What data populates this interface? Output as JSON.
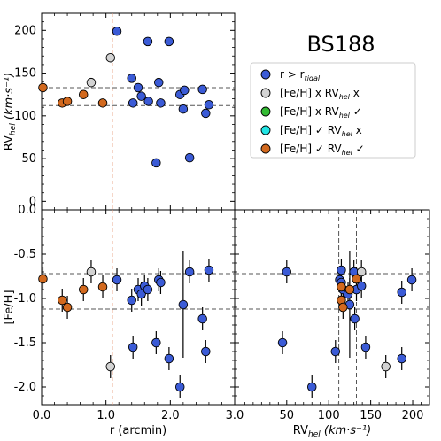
{
  "title": "BS188",
  "colors": {
    "blue": "#3b5bd6",
    "gray": "#d3d3d3",
    "green": "#33bb33",
    "cyan": "#22e5e5",
    "orange": "#d2691e",
    "rtidal_line": "#e8a080",
    "dashed": "#555555"
  },
  "legend": {
    "placement": "top-right",
    "entries": [
      {
        "key": "blue",
        "label": "r > r",
        "sub": "tidal"
      },
      {
        "key": "gray",
        "label": "[Fe/H]  x     RV",
        "sub": "hel",
        "tail": "  x"
      },
      {
        "key": "green",
        "label": "[Fe/H]  x     RV",
        "sub": "hel",
        "tail": "  ✓"
      },
      {
        "key": "cyan",
        "label": "[Fe/H]  ✓     RV",
        "sub": "hel",
        "tail": "  x"
      },
      {
        "key": "orange",
        "label": "[Fe/H]  ✓     RV",
        "sub": "hel",
        "tail": "  ✓"
      }
    ]
  },
  "axes": {
    "rv_label": "RV",
    "rv_sub": "hel",
    "rv_units": " (km·s⁻¹)",
    "feh_label": "[Fe/H]",
    "r_label": "r (arcmin)",
    "r_ticks": [
      "0.0",
      "1.0",
      "2.0",
      "3.0"
    ],
    "rv_ticks": [
      "0",
      "50",
      "100",
      "150",
      "200"
    ],
    "feh_ticks": [
      "0.0",
      "-0.5",
      "-1.0",
      "-1.5",
      "-2.0"
    ],
    "rv_bottom_ticks": [
      "50",
      "100",
      "150",
      "200"
    ]
  },
  "chart_data": [
    {
      "type": "scatter",
      "panel": "top-left",
      "xlabel": "",
      "ylabel": "RV_hel (km·s⁻¹)",
      "xlim": [
        0.0,
        3.0
      ],
      "ylim": [
        -10,
        220
      ],
      "r_tidal": 1.1,
      "hlines": [
        133,
        112
      ],
      "series": [
        {
          "color": "blue",
          "x": [
            1.17,
            1.4,
            1.42,
            1.5,
            1.55,
            1.65,
            1.66,
            1.78,
            1.82,
            1.85,
            1.98,
            2.15,
            2.2,
            2.22,
            2.3,
            2.5,
            2.55,
            2.6
          ],
          "y": [
            199,
            144,
            115,
            133,
            123,
            187,
            117,
            45,
            139,
            115,
            187,
            125,
            108,
            130,
            51,
            131,
            103,
            113
          ]
        },
        {
          "color": "gray",
          "x": [
            1.07,
            0.77
          ],
          "y": [
            168,
            139
          ]
        },
        {
          "color": "orange",
          "x": [
            0.02,
            0.32,
            0.4,
            0.65,
            0.95
          ],
          "y": [
            133,
            115,
            117,
            125,
            115
          ]
        }
      ]
    },
    {
      "type": "scatter",
      "panel": "bottom-left",
      "xlabel": "r (arcmin)",
      "ylabel": "[Fe/H]",
      "xlim": [
        0.0,
        3.0
      ],
      "ylim": [
        -2.2,
        0.0
      ],
      "r_tidal": 1.1,
      "hlines": [
        -0.72,
        -1.12
      ],
      "points": [
        {
          "color": "orange",
          "x": 0.02,
          "y": -0.78,
          "err": 0.13
        },
        {
          "color": "orange",
          "x": 0.32,
          "y": -1.02,
          "err": 0.13
        },
        {
          "color": "orange",
          "x": 0.4,
          "y": -1.1,
          "err": 0.13
        },
        {
          "color": "orange",
          "x": 0.65,
          "y": -0.9,
          "err": 0.13
        },
        {
          "color": "orange",
          "x": 0.95,
          "y": -0.87,
          "err": 0.13
        },
        {
          "color": "gray",
          "x": 0.77,
          "y": -0.7,
          "err": 0.13
        },
        {
          "color": "gray",
          "x": 1.07,
          "y": -1.77,
          "err": 0.13
        },
        {
          "color": "blue",
          "x": 1.17,
          "y": -0.79,
          "err": 0.13
        },
        {
          "color": "blue",
          "x": 1.4,
          "y": -1.02,
          "err": 0.13
        },
        {
          "color": "blue",
          "x": 1.42,
          "y": -1.55,
          "err": 0.13
        },
        {
          "color": "blue",
          "x": 1.5,
          "y": -0.9,
          "err": 0.13
        },
        {
          "color": "blue",
          "x": 1.55,
          "y": -0.95,
          "err": 0.13
        },
        {
          "color": "blue",
          "x": 1.6,
          "y": -0.86,
          "err": 0.13
        },
        {
          "color": "blue",
          "x": 1.65,
          "y": -0.9,
          "err": 0.13
        },
        {
          "color": "blue",
          "x": 1.78,
          "y": -1.5,
          "err": 0.13
        },
        {
          "color": "blue",
          "x": 1.82,
          "y": -0.79,
          "err": 0.13
        },
        {
          "color": "blue",
          "x": 1.85,
          "y": -0.82,
          "err": 0.13
        },
        {
          "color": "blue",
          "x": 1.98,
          "y": -1.68,
          "err": 0.13
        },
        {
          "color": "blue",
          "x": 2.15,
          "y": -2.0,
          "err": 0.13
        },
        {
          "color": "blue",
          "x": 2.2,
          "y": -1.07,
          "err": 0.6
        },
        {
          "color": "blue",
          "x": 2.3,
          "y": -0.7,
          "err": 0.13
        },
        {
          "color": "blue",
          "x": 2.5,
          "y": -1.23,
          "err": 0.13
        },
        {
          "color": "blue",
          "x": 2.55,
          "y": -1.6,
          "err": 0.13
        },
        {
          "color": "blue",
          "x": 2.6,
          "y": -0.68,
          "err": 0.13
        }
      ]
    },
    {
      "type": "scatter",
      "panel": "bottom-right",
      "xlabel": "RV_hel (km·s⁻¹)",
      "ylabel": "",
      "xlim": [
        -12,
        220
      ],
      "ylim": [
        -2.2,
        0.0
      ],
      "vlines": [
        112,
        133
      ],
      "hlines": [
        -0.72,
        -1.12
      ],
      "points": [
        {
          "color": "blue",
          "x": 50,
          "y": -0.7,
          "xerr": 3,
          "yerr": 0.13
        },
        {
          "color": "blue",
          "x": 45,
          "y": -1.5,
          "xerr": 3,
          "yerr": 0.13
        },
        {
          "color": "blue",
          "x": 80,
          "y": -2.0,
          "xerr": 3,
          "yerr": 0.13
        },
        {
          "color": "blue",
          "x": 108,
          "y": -1.6,
          "xerr": 3,
          "yerr": 0.13
        },
        {
          "color": "blue",
          "x": 113,
          "y": -0.79,
          "xerr": 3,
          "yerr": 0.13
        },
        {
          "color": "blue",
          "x": 115,
          "y": -0.68,
          "xerr": 3,
          "yerr": 0.13
        },
        {
          "color": "blue",
          "x": 115,
          "y": -0.82,
          "xerr": 3,
          "yerr": 0.13
        },
        {
          "color": "blue",
          "x": 117,
          "y": -0.9,
          "xerr": 3,
          "yerr": 0.13
        },
        {
          "color": "blue",
          "x": 123,
          "y": -0.95,
          "xerr": 3,
          "yerr": 0.13
        },
        {
          "color": "blue",
          "x": 125,
          "y": -1.07,
          "xerr": 3,
          "yerr": 0.6
        },
        {
          "color": "blue",
          "x": 130,
          "y": -0.7,
          "xerr": 3,
          "yerr": 0.13
        },
        {
          "color": "blue",
          "x": 131,
          "y": -1.23,
          "xerr": 3,
          "yerr": 0.13
        },
        {
          "color": "blue",
          "x": 133,
          "y": -0.9,
          "xerr": 3,
          "yerr": 0.13
        },
        {
          "color": "blue",
          "x": 139,
          "y": -0.86,
          "xerr": 3,
          "yerr": 0.13
        },
        {
          "color": "blue",
          "x": 144,
          "y": -1.55,
          "xerr": 3,
          "yerr": 0.13
        },
        {
          "color": "blue",
          "x": 187,
          "y": -0.93,
          "xerr": 3,
          "yerr": 0.13
        },
        {
          "color": "blue",
          "x": 187,
          "y": -1.68,
          "xerr": 3,
          "yerr": 0.13
        },
        {
          "color": "blue",
          "x": 199,
          "y": -0.79,
          "xerr": 3,
          "yerr": 0.13
        },
        {
          "color": "gray",
          "x": 168,
          "y": -1.77,
          "xerr": 3,
          "yerr": 0.13
        },
        {
          "color": "gray",
          "x": 139,
          "y": -0.7,
          "xerr": 3,
          "yerr": 0.13
        },
        {
          "color": "orange",
          "x": 115,
          "y": -1.02,
          "xerr": 3,
          "yerr": 0.13
        },
        {
          "color": "orange",
          "x": 117,
          "y": -1.1,
          "xerr": 3,
          "yerr": 0.13
        },
        {
          "color": "orange",
          "x": 115,
          "y": -0.87,
          "xerr": 3,
          "yerr": 0.13
        },
        {
          "color": "orange",
          "x": 125,
          "y": -0.9,
          "xerr": 3,
          "yerr": 0.13
        },
        {
          "color": "orange",
          "x": 133,
          "y": -0.78,
          "xerr": 3,
          "yerr": 0.13
        }
      ]
    }
  ]
}
